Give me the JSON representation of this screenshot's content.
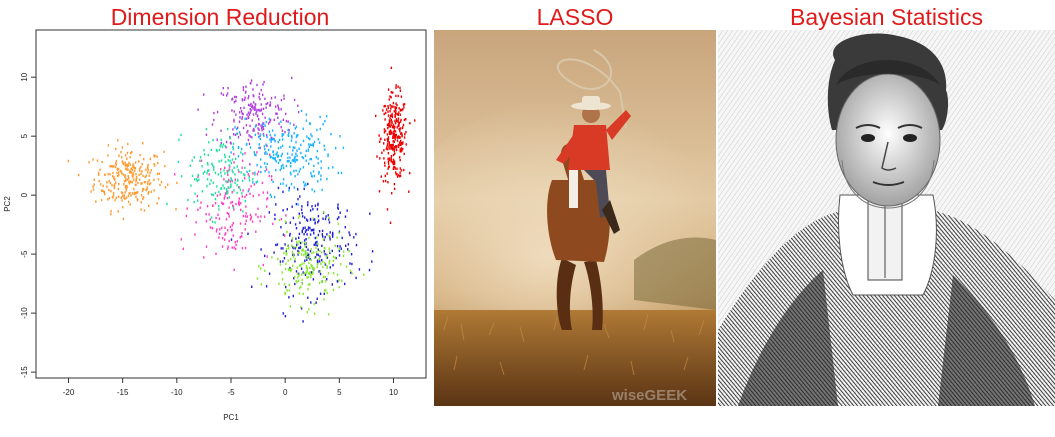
{
  "panels": [
    {
      "title": "Dimension Reduction"
    },
    {
      "title": "LASSO",
      "watermark": "wiseGEEK"
    },
    {
      "title": "Bayesian Statistics"
    }
  ],
  "colors": {
    "title": "#e01a1a"
  },
  "chart_data": {
    "type": "scatter",
    "title": "",
    "xlabel": "PC1",
    "ylabel": "PC2",
    "xlim": [
      -23,
      13
    ],
    "ylim": [
      -15.5,
      14
    ],
    "xticks": [
      "-20",
      "-15",
      "-10",
      "-5",
      "0",
      "5",
      "10"
    ],
    "yticks": [
      "-15",
      "-10",
      "-5",
      "0",
      "5",
      "10"
    ],
    "grid": false,
    "legend": "none",
    "clusters": [
      {
        "color": "#ff9a2e",
        "center": [
          -14.5,
          1.5
        ],
        "spread": [
          3.2,
          2.6
        ],
        "count": 260
      },
      {
        "color": "#ee0000",
        "center": [
          10.0,
          5.0
        ],
        "spread": [
          1.2,
          3.6
        ],
        "count": 280
      },
      {
        "color": "#b040e0",
        "center": [
          -3.0,
          7.0
        ],
        "spread": [
          3.5,
          3.0
        ],
        "count": 190
      },
      {
        "color": "#1ab4ff",
        "center": [
          0.0,
          3.5
        ],
        "spread": [
          4.5,
          3.2
        ],
        "count": 240
      },
      {
        "color": "#2020d8",
        "center": [
          2.5,
          -4.0
        ],
        "spread": [
          4.0,
          4.2
        ],
        "count": 240
      },
      {
        "color": "#88e830",
        "center": [
          2.0,
          -6.0
        ],
        "spread": [
          3.5,
          3.2
        ],
        "count": 190
      },
      {
        "color": "#ff40c0",
        "center": [
          -5.0,
          -1.0
        ],
        "spread": [
          3.5,
          4.5
        ],
        "count": 170
      },
      {
        "color": "#20e0a0",
        "center": [
          -6.0,
          2.0
        ],
        "spread": [
          3.0,
          3.5
        ],
        "count": 140
      }
    ]
  }
}
